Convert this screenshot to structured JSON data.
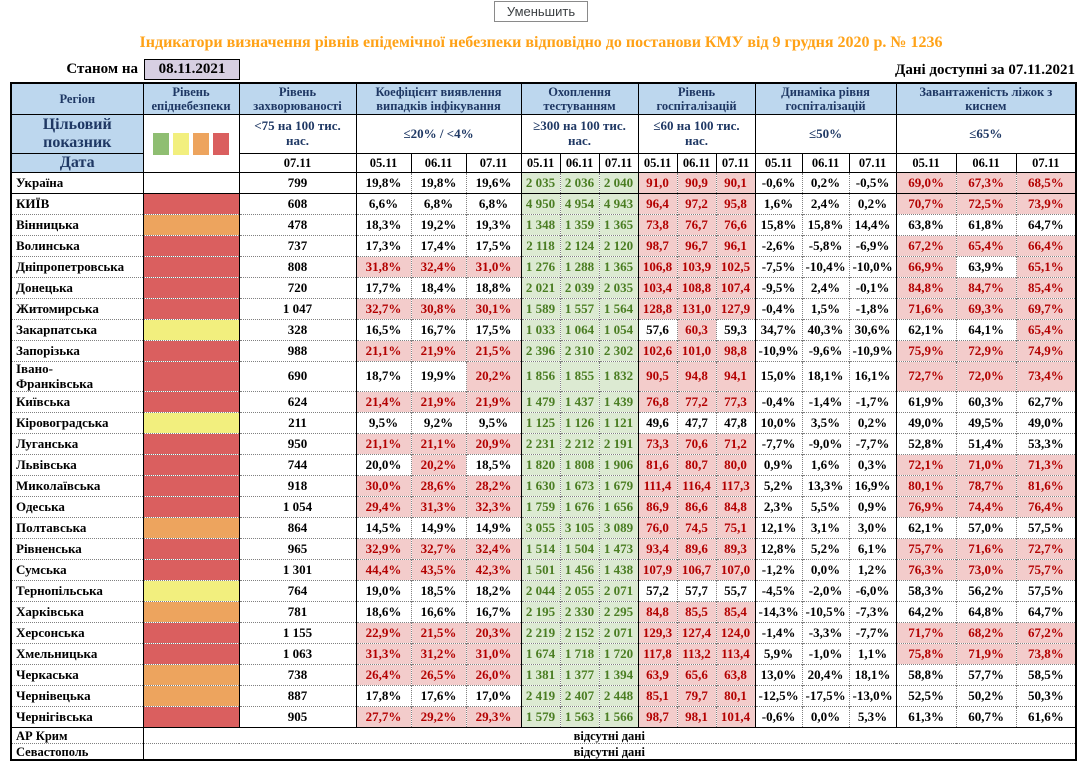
{
  "toolbar": {
    "button_label": "Уменьшить"
  },
  "title": "Індикатори визначення рівнів епідемічної небезпеки відповідно до постанови КМУ від 9 грудня 2020 р. № 1236",
  "as_of": {
    "label": "Станом на",
    "date": "08.11.2021"
  },
  "available": {
    "label": "Дані доступні за",
    "date": "07.11.2021"
  },
  "header": {
    "region_label": "Регіон",
    "target_label": "Цільовий показник",
    "date_label": "Дата",
    "swatches": [
      "green",
      "yellow",
      "orange",
      "red"
    ],
    "groups": [
      {
        "label": "Рівень епіднебезпеки"
      },
      {
        "label": "Рівень захворюваності",
        "target": "<75 на 100 тис. нас.",
        "dates": [
          "07.11"
        ]
      },
      {
        "label": "Коефіцієнт виявлення випадків інфікування",
        "target": "≤20% / <4%",
        "dates": [
          "05.11",
          "06.11",
          "07.11"
        ]
      },
      {
        "label": "Охоплення тестуванням",
        "target": "≥300 на 100 тис. нас.",
        "dates": [
          "05.11",
          "06.11",
          "07.11"
        ]
      },
      {
        "label": "Рівень госпіталізацій",
        "target": "≤60 на 100 тис. нас.",
        "dates": [
          "05.11",
          "06.11",
          "07.11"
        ]
      },
      {
        "label": "Динаміка рівня госпіталізацій",
        "target": "≤50%",
        "dates": [
          "05.11",
          "06.11",
          "07.11"
        ]
      },
      {
        "label": "Завантаженість ліжок з киснем",
        "target": "≤65%",
        "dates": [
          "05.11",
          "06.11",
          "07.11"
        ]
      }
    ]
  },
  "colors": {
    "title_orange": "#ffa217",
    "header_bg": "#bdd7ee",
    "header_text": "#1f3864",
    "date_box_bg": "#d7cfe2",
    "danger_red": "#da5f5f",
    "danger_orange": "#eda45e",
    "danger_yellow": "#f2ef7e",
    "good_bg": "#dcead2",
    "good_text": "#4a7d22",
    "alert_bg": "#f3cccb",
    "alert_text": "#b30000"
  },
  "rows": [
    {
      "region": "Україна",
      "danger": "none",
      "incidence": "799",
      "detection": [
        "19,8%",
        "19,8%",
        "19,6%"
      ],
      "detection_alert": [
        0,
        0,
        0
      ],
      "testing": [
        "2 035",
        "2 036",
        "2 040"
      ],
      "hospital": [
        "91,0",
        "90,9",
        "90,1"
      ],
      "hospital_alert": [
        1,
        1,
        1
      ],
      "dynamics": [
        "-0,6%",
        "0,2%",
        "-0,5%"
      ],
      "beds": [
        "69,0%",
        "67,3%",
        "68,5%"
      ],
      "beds_alert": [
        1,
        1,
        1
      ]
    },
    {
      "region": "КИЇВ",
      "danger": "red",
      "incidence": "608",
      "detection": [
        "6,6%",
        "6,8%",
        "6,8%"
      ],
      "detection_alert": [
        0,
        0,
        0
      ],
      "testing": [
        "4 950",
        "4 954",
        "4 943"
      ],
      "hospital": [
        "96,4",
        "97,2",
        "95,8"
      ],
      "hospital_alert": [
        1,
        1,
        1
      ],
      "dynamics": [
        "1,6%",
        "2,4%",
        "0,2%"
      ],
      "beds": [
        "70,7%",
        "72,5%",
        "73,9%"
      ],
      "beds_alert": [
        1,
        1,
        1
      ]
    },
    {
      "region": "Вінницька",
      "danger": "orange",
      "incidence": "478",
      "detection": [
        "18,3%",
        "19,2%",
        "19,3%"
      ],
      "detection_alert": [
        0,
        0,
        0
      ],
      "testing": [
        "1 348",
        "1 359",
        "1 365"
      ],
      "hospital": [
        "73,8",
        "76,7",
        "76,6"
      ],
      "hospital_alert": [
        1,
        1,
        1
      ],
      "dynamics": [
        "15,8%",
        "15,8%",
        "14,4%"
      ],
      "beds": [
        "63,8%",
        "61,8%",
        "64,7%"
      ],
      "beds_alert": [
        0,
        0,
        0
      ]
    },
    {
      "region": "Волинська",
      "danger": "red",
      "incidence": "737",
      "detection": [
        "17,3%",
        "17,4%",
        "17,5%"
      ],
      "detection_alert": [
        0,
        0,
        0
      ],
      "testing": [
        "2 118",
        "2 124",
        "2 120"
      ],
      "hospital": [
        "98,7",
        "96,7",
        "96,1"
      ],
      "hospital_alert": [
        1,
        1,
        1
      ],
      "dynamics": [
        "-2,6%",
        "-5,8%",
        "-6,9%"
      ],
      "beds": [
        "67,2%",
        "65,4%",
        "66,4%"
      ],
      "beds_alert": [
        1,
        1,
        1
      ]
    },
    {
      "region": "Дніпропетровська",
      "danger": "red",
      "incidence": "808",
      "detection": [
        "31,8%",
        "32,4%",
        "31,0%"
      ],
      "detection_alert": [
        1,
        1,
        1
      ],
      "testing": [
        "1 276",
        "1 288",
        "1 365"
      ],
      "hospital": [
        "106,8",
        "103,9",
        "102,5"
      ],
      "hospital_alert": [
        1,
        1,
        1
      ],
      "dynamics": [
        "-7,5%",
        "-10,4%",
        "-10,0%"
      ],
      "beds": [
        "66,9%",
        "63,9%",
        "65,1%"
      ],
      "beds_alert": [
        1,
        0,
        1
      ]
    },
    {
      "region": "Донецька",
      "danger": "red",
      "incidence": "720",
      "detection": [
        "17,7%",
        "18,4%",
        "18,8%"
      ],
      "detection_alert": [
        0,
        0,
        0
      ],
      "testing": [
        "2 021",
        "2 039",
        "2 035"
      ],
      "hospital": [
        "103,4",
        "108,8",
        "107,4"
      ],
      "hospital_alert": [
        1,
        1,
        1
      ],
      "dynamics": [
        "-9,5%",
        "2,4%",
        "-0,1%"
      ],
      "beds": [
        "84,8%",
        "84,7%",
        "85,4%"
      ],
      "beds_alert": [
        1,
        1,
        1
      ]
    },
    {
      "region": "Житомирська",
      "danger": "red",
      "incidence": "1 047",
      "detection": [
        "32,7%",
        "30,8%",
        "30,1%"
      ],
      "detection_alert": [
        1,
        1,
        1
      ],
      "testing": [
        "1 589",
        "1 557",
        "1 564"
      ],
      "hospital": [
        "128,8",
        "131,0",
        "127,9"
      ],
      "hospital_alert": [
        1,
        1,
        1
      ],
      "dynamics": [
        "-0,4%",
        "1,5%",
        "-1,8%"
      ],
      "beds": [
        "71,6%",
        "69,3%",
        "69,7%"
      ],
      "beds_alert": [
        1,
        1,
        1
      ]
    },
    {
      "region": "Закарпатська",
      "danger": "yellow",
      "incidence": "328",
      "detection": [
        "16,5%",
        "16,7%",
        "17,5%"
      ],
      "detection_alert": [
        0,
        0,
        0
      ],
      "testing": [
        "1 033",
        "1 064",
        "1 054"
      ],
      "hospital": [
        "57,6",
        "60,3",
        "59,3"
      ],
      "hospital_alert": [
        0,
        1,
        0
      ],
      "dynamics": [
        "34,7%",
        "40,3%",
        "30,6%"
      ],
      "beds": [
        "62,1%",
        "64,1%",
        "65,4%"
      ],
      "beds_alert": [
        0,
        0,
        1
      ]
    },
    {
      "region": "Запорізька",
      "danger": "red",
      "incidence": "988",
      "detection": [
        "21,1%",
        "21,9%",
        "21,5%"
      ],
      "detection_alert": [
        1,
        1,
        1
      ],
      "testing": [
        "2 396",
        "2 310",
        "2 302"
      ],
      "hospital": [
        "102,6",
        "101,0",
        "98,8"
      ],
      "hospital_alert": [
        1,
        1,
        1
      ],
      "dynamics": [
        "-10,9%",
        "-9,6%",
        "-10,9%"
      ],
      "beds": [
        "75,9%",
        "72,9%",
        "74,9%"
      ],
      "beds_alert": [
        1,
        1,
        1
      ]
    },
    {
      "region": "Івано-Франківська",
      "wrap": true,
      "danger": "red",
      "incidence": "690",
      "detection": [
        "18,7%",
        "19,9%",
        "20,2%"
      ],
      "detection_alert": [
        0,
        0,
        1
      ],
      "testing": [
        "1 856",
        "1 855",
        "1 832"
      ],
      "hospital": [
        "90,5",
        "94,8",
        "94,1"
      ],
      "hospital_alert": [
        1,
        1,
        1
      ],
      "dynamics": [
        "15,0%",
        "18,1%",
        "16,1%"
      ],
      "beds": [
        "72,7%",
        "72,0%",
        "73,4%"
      ],
      "beds_alert": [
        1,
        1,
        1
      ]
    },
    {
      "region": "Київська",
      "danger": "red",
      "incidence": "624",
      "detection": [
        "21,4%",
        "21,9%",
        "21,9%"
      ],
      "detection_alert": [
        1,
        1,
        1
      ],
      "testing": [
        "1 479",
        "1 437",
        "1 439"
      ],
      "hospital": [
        "76,8",
        "77,2",
        "77,3"
      ],
      "hospital_alert": [
        1,
        1,
        1
      ],
      "dynamics": [
        "-0,4%",
        "-1,4%",
        "-1,7%"
      ],
      "beds": [
        "61,9%",
        "60,3%",
        "62,7%"
      ],
      "beds_alert": [
        0,
        0,
        0
      ]
    },
    {
      "region": "Кіровоградська",
      "danger": "yellow",
      "incidence": "211",
      "detection": [
        "9,5%",
        "9,2%",
        "9,5%"
      ],
      "detection_alert": [
        0,
        0,
        0
      ],
      "testing": [
        "1 125",
        "1 126",
        "1 121"
      ],
      "hospital": [
        "49,6",
        "47,7",
        "47,8"
      ],
      "hospital_alert": [
        0,
        0,
        0
      ],
      "dynamics": [
        "10,0%",
        "3,5%",
        "0,2%"
      ],
      "beds": [
        "49,0%",
        "49,5%",
        "49,0%"
      ],
      "beds_alert": [
        0,
        0,
        0
      ]
    },
    {
      "region": "Луганська",
      "danger": "red",
      "incidence": "950",
      "detection": [
        "21,1%",
        "21,1%",
        "20,9%"
      ],
      "detection_alert": [
        1,
        1,
        1
      ],
      "testing": [
        "2 231",
        "2 212",
        "2 191"
      ],
      "hospital": [
        "73,3",
        "70,6",
        "71,2"
      ],
      "hospital_alert": [
        1,
        1,
        1
      ],
      "dynamics": [
        "-7,7%",
        "-9,0%",
        "-7,7%"
      ],
      "beds": [
        "52,8%",
        "51,4%",
        "53,3%"
      ],
      "beds_alert": [
        0,
        0,
        0
      ]
    },
    {
      "region": "Львівська",
      "danger": "red",
      "incidence": "744",
      "detection": [
        "20,0%",
        "20,2%",
        "18,5%"
      ],
      "detection_alert": [
        0,
        1,
        0
      ],
      "testing": [
        "1 820",
        "1 808",
        "1 906"
      ],
      "hospital": [
        "81,6",
        "80,7",
        "80,0"
      ],
      "hospital_alert": [
        1,
        1,
        1
      ],
      "dynamics": [
        "0,9%",
        "1,6%",
        "0,3%"
      ],
      "beds": [
        "72,1%",
        "71,0%",
        "71,3%"
      ],
      "beds_alert": [
        1,
        1,
        1
      ]
    },
    {
      "region": "Миколаївська",
      "danger": "red",
      "incidence": "918",
      "detection": [
        "30,0%",
        "28,6%",
        "28,2%"
      ],
      "detection_alert": [
        1,
        1,
        1
      ],
      "testing": [
        "1 630",
        "1 673",
        "1 679"
      ],
      "hospital": [
        "111,4",
        "116,4",
        "117,3"
      ],
      "hospital_alert": [
        1,
        1,
        1
      ],
      "dynamics": [
        "5,2%",
        "13,3%",
        "16,9%"
      ],
      "beds": [
        "80,1%",
        "78,7%",
        "81,6%"
      ],
      "beds_alert": [
        1,
        1,
        1
      ]
    },
    {
      "region": "Одеська",
      "danger": "red",
      "incidence": "1 054",
      "detection": [
        "29,4%",
        "31,3%",
        "32,3%"
      ],
      "detection_alert": [
        1,
        1,
        1
      ],
      "testing": [
        "1 759",
        "1 676",
        "1 656"
      ],
      "hospital": [
        "86,9",
        "86,6",
        "84,8"
      ],
      "hospital_alert": [
        1,
        1,
        1
      ],
      "dynamics": [
        "2,3%",
        "5,5%",
        "0,9%"
      ],
      "beds": [
        "76,9%",
        "74,4%",
        "76,4%"
      ],
      "beds_alert": [
        1,
        1,
        1
      ]
    },
    {
      "region": "Полтавська",
      "danger": "orange",
      "incidence": "864",
      "detection": [
        "14,5%",
        "14,9%",
        "14,9%"
      ],
      "detection_alert": [
        0,
        0,
        0
      ],
      "testing": [
        "3 055",
        "3 105",
        "3 089"
      ],
      "hospital": [
        "76,0",
        "74,5",
        "75,1"
      ],
      "hospital_alert": [
        1,
        1,
        1
      ],
      "dynamics": [
        "12,1%",
        "3,1%",
        "3,0%"
      ],
      "beds": [
        "62,1%",
        "57,0%",
        "57,5%"
      ],
      "beds_alert": [
        0,
        0,
        0
      ]
    },
    {
      "region": "Рівненська",
      "danger": "red",
      "incidence": "965",
      "detection": [
        "32,9%",
        "32,7%",
        "32,4%"
      ],
      "detection_alert": [
        1,
        1,
        1
      ],
      "testing": [
        "1 514",
        "1 504",
        "1 473"
      ],
      "hospital": [
        "93,4",
        "89,6",
        "89,3"
      ],
      "hospital_alert": [
        1,
        1,
        1
      ],
      "dynamics": [
        "12,8%",
        "5,2%",
        "6,1%"
      ],
      "beds": [
        "75,7%",
        "71,6%",
        "72,7%"
      ],
      "beds_alert": [
        1,
        1,
        1
      ]
    },
    {
      "region": "Сумська",
      "danger": "red",
      "incidence": "1 301",
      "detection": [
        "44,4%",
        "43,5%",
        "42,3%"
      ],
      "detection_alert": [
        1,
        1,
        1
      ],
      "testing": [
        "1 501",
        "1 456",
        "1 438"
      ],
      "hospital": [
        "107,9",
        "106,7",
        "107,0"
      ],
      "hospital_alert": [
        1,
        1,
        1
      ],
      "dynamics": [
        "-1,2%",
        "0,0%",
        "1,2%"
      ],
      "beds": [
        "76,3%",
        "73,0%",
        "75,7%"
      ],
      "beds_alert": [
        1,
        1,
        1
      ]
    },
    {
      "region": "Тернопільська",
      "danger": "yellow",
      "incidence": "764",
      "detection": [
        "19,0%",
        "18,5%",
        "18,2%"
      ],
      "detection_alert": [
        0,
        0,
        0
      ],
      "testing": [
        "2 044",
        "2 055",
        "2 071"
      ],
      "hospital": [
        "57,2",
        "57,7",
        "55,7"
      ],
      "hospital_alert": [
        0,
        0,
        0
      ],
      "dynamics": [
        "-4,5%",
        "-2,0%",
        "-6,0%"
      ],
      "beds": [
        "58,3%",
        "56,2%",
        "57,5%"
      ],
      "beds_alert": [
        0,
        0,
        0
      ]
    },
    {
      "region": "Харківська",
      "danger": "orange",
      "incidence": "781",
      "detection": [
        "18,6%",
        "16,6%",
        "16,7%"
      ],
      "detection_alert": [
        0,
        0,
        0
      ],
      "testing": [
        "2 195",
        "2 330",
        "2 295"
      ],
      "hospital": [
        "84,8",
        "85,5",
        "85,4"
      ],
      "hospital_alert": [
        1,
        1,
        1
      ],
      "dynamics": [
        "-14,3%",
        "-10,5%",
        "-7,3%"
      ],
      "beds": [
        "64,2%",
        "64,8%",
        "64,7%"
      ],
      "beds_alert": [
        0,
        0,
        0
      ]
    },
    {
      "region": "Херсонська",
      "danger": "red",
      "incidence": "1 155",
      "detection": [
        "22,9%",
        "21,5%",
        "20,3%"
      ],
      "detection_alert": [
        1,
        1,
        1
      ],
      "testing": [
        "2 219",
        "2 152",
        "2 071"
      ],
      "hospital": [
        "129,3",
        "127,4",
        "124,0"
      ],
      "hospital_alert": [
        1,
        1,
        1
      ],
      "dynamics": [
        "-1,4%",
        "-3,3%",
        "-7,7%"
      ],
      "beds": [
        "71,7%",
        "68,2%",
        "67,2%"
      ],
      "beds_alert": [
        1,
        1,
        1
      ]
    },
    {
      "region": "Хмельницька",
      "danger": "red",
      "incidence": "1 063",
      "detection": [
        "31,3%",
        "31,2%",
        "31,0%"
      ],
      "detection_alert": [
        1,
        1,
        1
      ],
      "testing": [
        "1 674",
        "1 718",
        "1 720"
      ],
      "hospital": [
        "117,8",
        "113,2",
        "113,4"
      ],
      "hospital_alert": [
        1,
        1,
        1
      ],
      "dynamics": [
        "5,9%",
        "-1,0%",
        "1,1%"
      ],
      "beds": [
        "75,8%",
        "71,9%",
        "73,8%"
      ],
      "beds_alert": [
        1,
        1,
        1
      ]
    },
    {
      "region": "Черкаська",
      "danger": "orange",
      "incidence": "738",
      "detection": [
        "26,4%",
        "26,5%",
        "26,0%"
      ],
      "detection_alert": [
        1,
        1,
        1
      ],
      "testing": [
        "1 381",
        "1 377",
        "1 394"
      ],
      "hospital": [
        "63,9",
        "65,6",
        "63,8"
      ],
      "hospital_alert": [
        1,
        1,
        1
      ],
      "dynamics": [
        "13,0%",
        "20,4%",
        "18,1%"
      ],
      "beds": [
        "58,8%",
        "57,7%",
        "58,5%"
      ],
      "beds_alert": [
        0,
        0,
        0
      ]
    },
    {
      "region": "Чернівецька",
      "danger": "orange",
      "incidence": "887",
      "detection": [
        "17,8%",
        "17,6%",
        "17,0%"
      ],
      "detection_alert": [
        0,
        0,
        0
      ],
      "testing": [
        "2 419",
        "2 407",
        "2 448"
      ],
      "hospital": [
        "85,1",
        "79,7",
        "80,1"
      ],
      "hospital_alert": [
        1,
        1,
        1
      ],
      "dynamics": [
        "-12,5%",
        "-17,5%",
        "-13,0%"
      ],
      "beds": [
        "52,5%",
        "50,2%",
        "50,3%"
      ],
      "beds_alert": [
        0,
        0,
        0
      ]
    },
    {
      "region": "Чернігівська",
      "danger": "red",
      "incidence": "905",
      "detection": [
        "27,7%",
        "29,2%",
        "29,3%"
      ],
      "detection_alert": [
        1,
        1,
        1
      ],
      "testing": [
        "1 579",
        "1 563",
        "1 566"
      ],
      "hospital": [
        "98,7",
        "98,1",
        "101,4"
      ],
      "hospital_alert": [
        1,
        1,
        1
      ],
      "dynamics": [
        "-0,6%",
        "0,0%",
        "5,3%"
      ],
      "beds": [
        "61,3%",
        "60,7%",
        "61,6%"
      ],
      "beds_alert": [
        0,
        0,
        0
      ]
    }
  ],
  "no_data_rows": [
    {
      "region": "АР Крим",
      "text": "відсутні дані"
    },
    {
      "region": "Севастополь",
      "text": "відсутні дані"
    }
  ]
}
